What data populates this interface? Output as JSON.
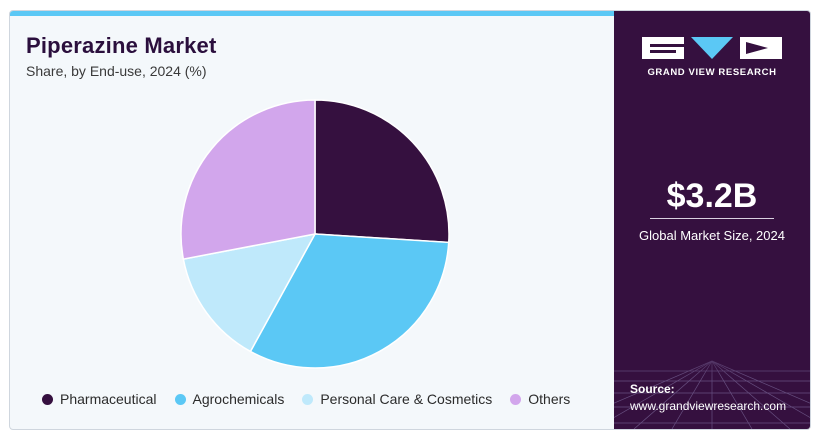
{
  "header": {
    "title": "Piperazine Market",
    "subtitle": "Share, by End-use, 2024 (%)"
  },
  "chart_data": {
    "type": "pie",
    "title": "Piperazine Market",
    "subtitle": "Share, by End-use, 2024 (%)",
    "categories": [
      "Pharmaceutical",
      "Agrochemicals",
      "Personal Care & Cosmetics",
      "Others"
    ],
    "values": [
      26,
      32,
      14,
      28
    ],
    "colors": [
      "#35103f",
      "#5bc8f5",
      "#bfe9fb",
      "#d2a6ec"
    ],
    "legend_position": "bottom",
    "start_angle": "12 o'clock",
    "direction": "clockwise"
  },
  "sidebar": {
    "brand": "GRAND VIEW RESEARCH",
    "market_size": "$3.2B",
    "market_size_label": "Global Market Size, 2024",
    "source_label": "Source:",
    "source_url": "www.grandviewresearch.com",
    "logo_icon": "gvr-logo-icon"
  }
}
